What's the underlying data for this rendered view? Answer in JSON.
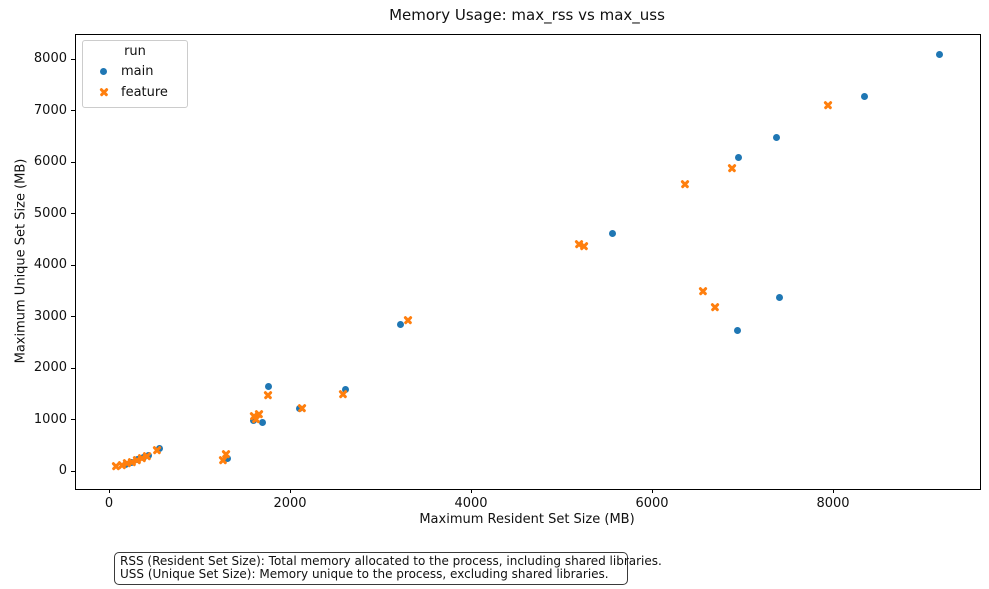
{
  "chart_data": {
    "type": "scatter",
    "title": "Memory Usage: max_rss vs max_uss",
    "xlabel": "Maximum Resident Set Size (MB)",
    "ylabel": "Maximum Unique Set Size (MB)",
    "xlim": [
      -376,
      9613
    ],
    "ylim": [
      -330,
      8486
    ],
    "xticks": [
      0,
      2000,
      4000,
      6000,
      8000
    ],
    "yticks": [
      0,
      1000,
      2000,
      3000,
      4000,
      5000,
      6000,
      7000,
      8000
    ],
    "grid": false,
    "legend": {
      "title": "run",
      "position": "upper left",
      "entries": [
        {
          "label": "main",
          "marker": "circle",
          "color": "#1f77b4"
        },
        {
          "label": "feature",
          "marker": "x",
          "color": "#ff7f0e"
        }
      ]
    },
    "series": [
      {
        "name": "main",
        "marker": "circle",
        "color": "#1f77b4",
        "points": [
          [
            9160,
            8100
          ],
          [
            8340,
            7300
          ],
          [
            7360,
            6500
          ],
          [
            6940,
            6110
          ],
          [
            7400,
            3380
          ],
          [
            6930,
            2740
          ],
          [
            5550,
            4640
          ],
          [
            3210,
            2860
          ],
          [
            2600,
            1610
          ],
          [
            2090,
            1225
          ],
          [
            1750,
            1670
          ],
          [
            1690,
            970
          ],
          [
            1580,
            995
          ],
          [
            1300,
            255
          ],
          [
            550,
            450
          ],
          [
            430,
            330
          ],
          [
            375,
            290
          ],
          [
            300,
            250
          ],
          [
            240,
            175
          ],
          [
            175,
            155
          ]
        ]
      },
      {
        "name": "feature",
        "marker": "x",
        "color": "#ff7f0e",
        "points": [
          [
            7930,
            7130
          ],
          [
            6870,
            5900
          ],
          [
            6350,
            5590
          ],
          [
            6690,
            3200
          ],
          [
            6550,
            3515
          ],
          [
            5240,
            4390
          ],
          [
            5185,
            4430
          ],
          [
            3290,
            2955
          ],
          [
            2575,
            1515
          ],
          [
            2120,
            1245
          ],
          [
            1750,
            1495
          ],
          [
            1645,
            1120
          ],
          [
            1615,
            1030
          ],
          [
            1590,
            1095
          ],
          [
            1280,
            350
          ],
          [
            1250,
            235
          ],
          [
            520,
            430
          ],
          [
            410,
            310
          ],
          [
            355,
            270
          ],
          [
            300,
            235
          ],
          [
            245,
            195
          ],
          [
            190,
            175
          ],
          [
            130,
            140
          ],
          [
            70,
            115
          ]
        ]
      }
    ],
    "annotations": [
      "RSS (Resident Set Size): Total memory allocated to the process, including shared libraries.",
      "USS (Unique Set Size): Memory unique to the process, excluding shared libraries."
    ]
  }
}
